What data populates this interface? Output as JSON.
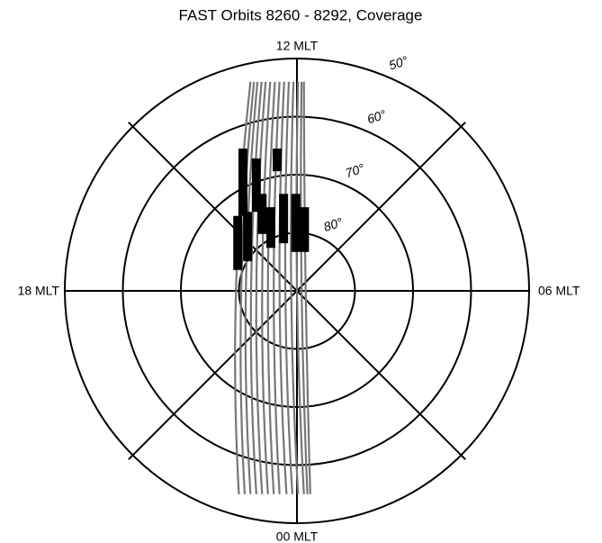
{
  "chart_data": {
    "type": "polar",
    "title": "FAST Orbits 8260 - 8292, Coverage",
    "direction_labels": {
      "top": "12 MLT",
      "bottom": "00 MLT",
      "left": "18 MLT",
      "right": "06 MLT"
    },
    "rlim": [
      90,
      50
    ],
    "rticks": [
      {
        "value": 80,
        "label": "80°"
      },
      {
        "value": 70,
        "label": "70°"
      },
      {
        "value": 60,
        "label": "60°"
      },
      {
        "value": 50,
        "label": "50°"
      }
    ],
    "orbit_color": "#777777",
    "coverage_color": "#000000",
    "orbits": [
      {
        "x": [
          -8.0,
          -10.5,
          -10.0
        ],
        "y": [
          36,
          0,
          -35
        ]
      },
      {
        "x": [
          -7.4,
          -9.6,
          -9.0
        ],
        "y": [
          36,
          0,
          -35
        ]
      },
      {
        "x": [
          -6.8,
          -8.8,
          -8.0
        ],
        "y": [
          36,
          0,
          -35
        ]
      },
      {
        "x": [
          -6.1,
          -7.9,
          -7.0
        ],
        "y": [
          36,
          0,
          -35
        ]
      },
      {
        "x": [
          -5.4,
          -7.0,
          -6.0
        ],
        "y": [
          36,
          0,
          -35
        ]
      },
      {
        "x": [
          -4.6,
          -6.0,
          -5.0
        ],
        "y": [
          36,
          0,
          -35
        ]
      },
      {
        "x": [
          -3.8,
          -5.0,
          -4.0
        ],
        "y": [
          36,
          0,
          -35
        ]
      },
      {
        "x": [
          -3.0,
          -4.0,
          -3.0
        ],
        "y": [
          36,
          0,
          -35
        ]
      },
      {
        "x": [
          -2.2,
          -3.0,
          -1.8
        ],
        "y": [
          36,
          0,
          -35
        ]
      },
      {
        "x": [
          -1.4,
          -2.0,
          -0.8
        ],
        "y": [
          36,
          0,
          -35
        ]
      },
      {
        "x": [
          -0.6,
          -1.0,
          0.2
        ],
        "y": [
          36,
          0,
          -35
        ]
      },
      {
        "x": [
          0.2,
          0.0,
          1.2
        ],
        "y": [
          36,
          0,
          -35
        ]
      },
      {
        "x": [
          0.8,
          0.8,
          1.8
        ],
        "y": [
          36,
          0,
          -35
        ]
      },
      {
        "x": [
          1.2,
          1.5,
          2.3
        ],
        "y": [
          36,
          0,
          -35
        ]
      }
    ],
    "coverage": [
      {
        "x": -9.3,
        "y": [
          24.5,
          12.9
        ]
      },
      {
        "x": -7.0,
        "y": [
          22.8,
          13.6
        ]
      },
      {
        "x": -3.4,
        "y": [
          24.5,
          20.6
        ]
      },
      {
        "x": -10.2,
        "y": [
          12.9,
          3.6
        ]
      },
      {
        "x": -8.5,
        "y": [
          13.6,
          5.1
        ]
      },
      {
        "x": -6.0,
        "y": [
          16.7,
          9.8
        ]
      },
      {
        "x": -4.5,
        "y": [
          14.4,
          7.4
        ]
      },
      {
        "x": -2.3,
        "y": [
          16.7,
          8.2
        ]
      },
      {
        "x": -0.2,
        "y": [
          16.7,
          6.7
        ]
      },
      {
        "x": 1.3,
        "y": [
          14.4,
          6.7
        ]
      }
    ]
  }
}
